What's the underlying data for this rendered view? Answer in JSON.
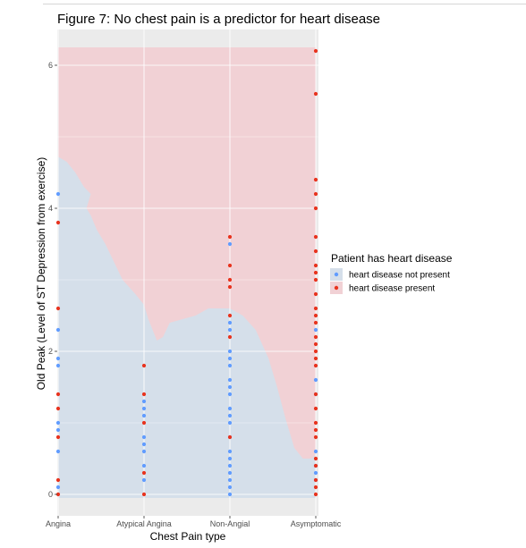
{
  "chart_data": {
    "type": "scatter",
    "title": "Figure 7: No chest pain is a predictor for heart disease",
    "xlabel": "Chest Pain type",
    "ylabel": "Old Peak (Level of ST Depression from exercise)",
    "categories": [
      "Angina",
      "Atypical Angina",
      "Non-Angial",
      "Asymptomatic"
    ],
    "y_ticks": [
      0,
      2,
      4,
      6
    ],
    "ylim": [
      -0.3,
      6.5
    ],
    "grid": true,
    "background_regions": {
      "description_colors": {
        "not_present": "#d5dfea",
        "present": "#f1d1d5"
      },
      "boundary": [
        [
          0,
          4.72
        ],
        [
          0.1,
          4.65
        ],
        [
          0.2,
          4.5
        ],
        [
          0.3,
          4.3
        ],
        [
          0.38,
          4.2
        ],
        [
          0.33,
          4.0
        ],
        [
          0.38,
          3.9
        ],
        [
          0.45,
          3.7
        ],
        [
          0.55,
          3.5
        ],
        [
          0.65,
          3.25
        ],
        [
          0.75,
          3.0
        ],
        [
          0.9,
          2.8
        ],
        [
          1.0,
          2.65
        ],
        [
          1.05,
          2.45
        ],
        [
          1.1,
          2.3
        ],
        [
          1.15,
          2.15
        ],
        [
          1.22,
          2.2
        ],
        [
          1.3,
          2.4
        ],
        [
          1.45,
          2.45
        ],
        [
          1.6,
          2.5
        ],
        [
          1.75,
          2.6
        ],
        [
          2.0,
          2.6
        ],
        [
          2.15,
          2.5
        ],
        [
          2.3,
          2.3
        ],
        [
          2.45,
          1.9
        ],
        [
          2.55,
          1.5
        ],
        [
          2.65,
          1.05
        ],
        [
          2.75,
          0.65
        ],
        [
          2.85,
          0.5
        ],
        [
          2.95,
          0.5
        ],
        [
          3.0,
          0.55
        ]
      ]
    },
    "series": [
      {
        "name": "heart disease not present",
        "color": "#619cff",
        "points": [
          [
            0,
            0.1
          ],
          [
            0,
            0.6
          ],
          [
            0,
            0.9
          ],
          [
            0,
            1.0
          ],
          [
            0,
            1.8
          ],
          [
            0,
            1.9
          ],
          [
            0,
            2.3
          ],
          [
            0,
            4.2
          ],
          [
            1,
            0.2
          ],
          [
            1,
            0.4
          ],
          [
            1,
            0.6
          ],
          [
            1,
            0.7
          ],
          [
            1,
            0.8
          ],
          [
            1,
            1.1
          ],
          [
            1,
            1.2
          ],
          [
            1,
            1.3
          ],
          [
            2,
            0.0
          ],
          [
            2,
            0.1
          ],
          [
            2,
            0.2
          ],
          [
            2,
            0.3
          ],
          [
            2,
            0.4
          ],
          [
            2,
            0.5
          ],
          [
            2,
            0.6
          ],
          [
            2,
            0.8
          ],
          [
            2,
            1.0
          ],
          [
            2,
            1.1
          ],
          [
            2,
            1.2
          ],
          [
            2,
            1.4
          ],
          [
            2,
            1.5
          ],
          [
            2,
            1.6
          ],
          [
            2,
            1.8
          ],
          [
            2,
            1.9
          ],
          [
            2,
            2.0
          ],
          [
            2,
            2.3
          ],
          [
            2,
            2.4
          ],
          [
            2,
            3.5
          ],
          [
            3,
            0.2
          ],
          [
            3,
            0.3
          ],
          [
            3,
            0.4
          ],
          [
            3,
            0.6
          ],
          [
            3,
            1.4
          ],
          [
            3,
            1.6
          ],
          [
            3,
            2.3
          ]
        ]
      },
      {
        "name": "heart disease present",
        "color": "#e8331e",
        "points": [
          [
            0,
            0.0
          ],
          [
            0,
            0.2
          ],
          [
            0,
            0.8
          ],
          [
            0,
            1.2
          ],
          [
            0,
            1.4
          ],
          [
            0,
            2.6
          ],
          [
            0,
            3.8
          ],
          [
            1,
            0.0
          ],
          [
            1,
            0.3
          ],
          [
            1,
            1.0
          ],
          [
            1,
            1.4
          ],
          [
            1,
            1.8
          ],
          [
            2,
            0.8
          ],
          [
            2,
            2.2
          ],
          [
            2,
            2.5
          ],
          [
            2,
            2.9
          ],
          [
            2,
            3.0
          ],
          [
            2,
            3.2
          ],
          [
            2,
            3.6
          ],
          [
            3,
            0.0
          ],
          [
            3,
            0.1
          ],
          [
            3,
            0.2
          ],
          [
            3,
            0.4
          ],
          [
            3,
            0.5
          ],
          [
            3,
            0.8
          ],
          [
            3,
            0.9
          ],
          [
            3,
            1.0
          ],
          [
            3,
            1.2
          ],
          [
            3,
            1.4
          ],
          [
            3,
            1.8
          ],
          [
            3,
            1.9
          ],
          [
            3,
            2.0
          ],
          [
            3,
            2.1
          ],
          [
            3,
            2.2
          ],
          [
            3,
            2.4
          ],
          [
            3,
            2.5
          ],
          [
            3,
            2.6
          ],
          [
            3,
            2.8
          ],
          [
            3,
            3.0
          ],
          [
            3,
            3.1
          ],
          [
            3,
            3.2
          ],
          [
            3,
            3.4
          ],
          [
            3,
            3.6
          ],
          [
            3,
            4.0
          ],
          [
            3,
            4.2
          ],
          [
            3,
            4.4
          ],
          [
            3,
            5.6
          ],
          [
            3,
            6.2
          ]
        ]
      }
    ],
    "legend": {
      "title": "Patient has heart disease",
      "position": "right"
    }
  }
}
